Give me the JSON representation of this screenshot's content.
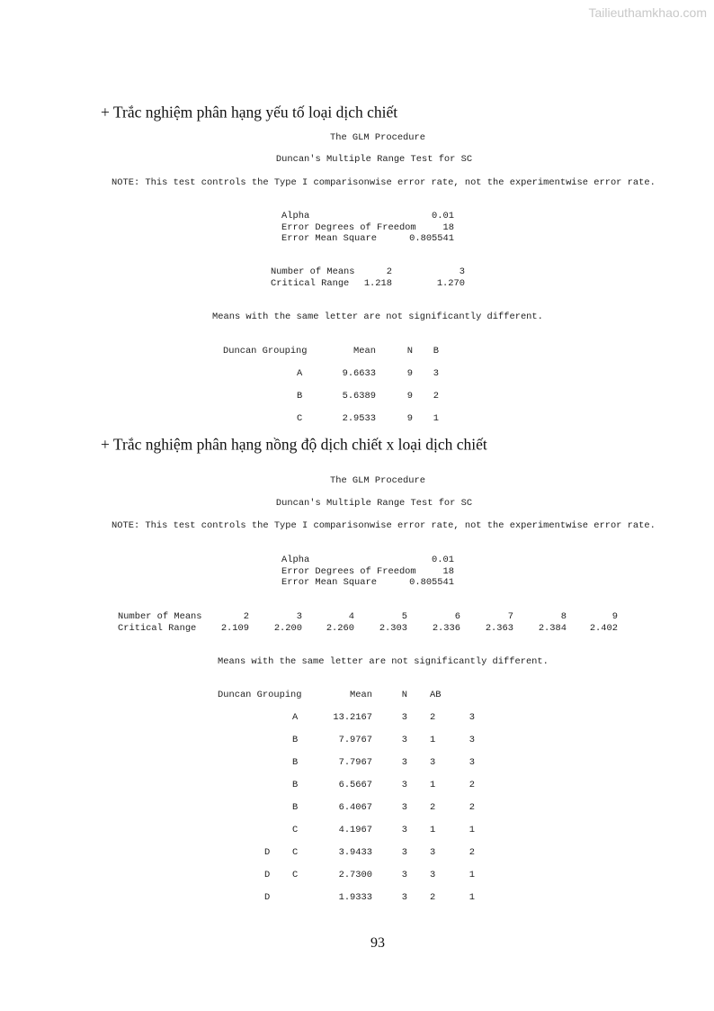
{
  "watermark": "Tailieuthamkhao.com",
  "page_number": "93",
  "sections": [
    {
      "heading": "+ Trắc nghiệm phân hạng yếu tố loại dịch chiết",
      "procedure": "The GLM Procedure",
      "test_title": "Duncan's Multiple Range Test for SC",
      "note": "NOTE: This test controls the Type I comparisonwise error rate, not the experimentwise error rate.",
      "stats": [
        {
          "label": "Alpha",
          "value": "0.01"
        },
        {
          "label": "Error Degrees of Freedom",
          "value": "18"
        },
        {
          "label": "Error Mean Square",
          "value": "0.805541"
        }
      ],
      "range_labels": [
        "Number of Means",
        "Critical Range"
      ],
      "number_of_means": [
        "2",
        "3"
      ],
      "critical_range": [
        "1.218",
        "1.270"
      ],
      "means_note": "Means with the same letter are not significantly different.",
      "headers": [
        "Duncan Grouping",
        "Mean",
        "N",
        "B"
      ],
      "rows": [
        {
          "group": [
            "A"
          ],
          "mean": "9.6633",
          "n": "9",
          "vals": [
            "3"
          ]
        },
        {
          "group": [
            "B"
          ],
          "mean": "5.6389",
          "n": "9",
          "vals": [
            "2"
          ]
        },
        {
          "group": [
            "C"
          ],
          "mean": "2.9533",
          "n": "9",
          "vals": [
            "1"
          ]
        }
      ]
    },
    {
      "heading": "+ Trắc nghiệm phân hạng nồng độ dịch chiết x loại dịch chiết",
      "procedure": "The GLM Procedure",
      "test_title": "Duncan's Multiple Range Test for SC",
      "note": "NOTE: This test controls the Type I comparisonwise error rate, not the experimentwise error rate.",
      "stats": [
        {
          "label": "Alpha",
          "value": "0.01"
        },
        {
          "label": "Error Degrees of Freedom",
          "value": "18"
        },
        {
          "label": "Error Mean Square",
          "value": "0.805541"
        }
      ],
      "range_labels": [
        "Number of Means",
        "Critical Range"
      ],
      "number_of_means": [
        "2",
        "3",
        "4",
        "5",
        "6",
        "7",
        "8",
        "9"
      ],
      "critical_range": [
        "2.109",
        "2.200",
        "2.260",
        "2.303",
        "2.336",
        "2.363",
        "2.384",
        "2.402"
      ],
      "means_note": "Means with the same letter are not significantly different.",
      "headers": [
        "Duncan Grouping",
        "Mean",
        "N",
        "AB"
      ],
      "rows": [
        {
          "group": [
            "",
            "A"
          ],
          "mean": "13.2167",
          "n": "3",
          "vals": [
            "2",
            "3"
          ]
        },
        {
          "group": [
            "",
            "B"
          ],
          "mean": "7.9767",
          "n": "3",
          "vals": [
            "1",
            "3"
          ]
        },
        {
          "group": [
            "",
            "B"
          ],
          "mean": "7.7967",
          "n": "3",
          "vals": [
            "3",
            "3"
          ]
        },
        {
          "group": [
            "",
            "B"
          ],
          "mean": "6.5667",
          "n": "3",
          "vals": [
            "1",
            "2"
          ]
        },
        {
          "group": [
            "",
            "B"
          ],
          "mean": "6.4067",
          "n": "3",
          "vals": [
            "2",
            "2"
          ]
        },
        {
          "group": [
            "",
            "C"
          ],
          "mean": "4.1967",
          "n": "3",
          "vals": [
            "1",
            "1"
          ]
        },
        {
          "group": [
            "D",
            "C"
          ],
          "mean": "3.9433",
          "n": "3",
          "vals": [
            "3",
            "2"
          ]
        },
        {
          "group": [
            "D",
            "C"
          ],
          "mean": "2.7300",
          "n": "3",
          "vals": [
            "3",
            "1"
          ]
        },
        {
          "group": [
            "D",
            ""
          ],
          "mean": "1.9333",
          "n": "3",
          "vals": [
            "2",
            "1"
          ]
        }
      ]
    }
  ]
}
